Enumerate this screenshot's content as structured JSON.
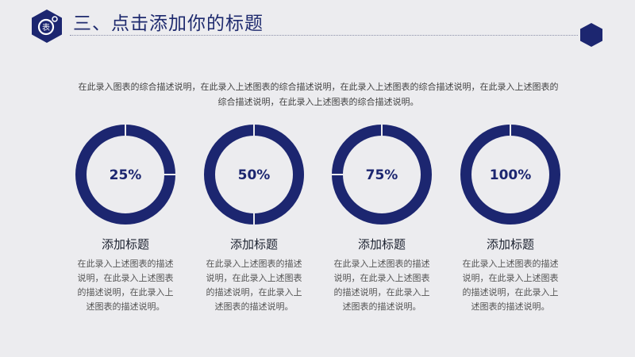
{
  "header": {
    "title": "三、点击添加你的标题",
    "logo_icon": "hexagon-gear-icon",
    "corner_icon": "hexagon-icon"
  },
  "intro": "在此录入图表的综合描述说明，在此录入上述图表的综合描述说明，在此录入上述图表的综合描述说明，在此录入上述图表的综合描述说明，在此录入上述图表的综合描述说明。",
  "colors": {
    "accent": "#1c2670",
    "background": "#ececef"
  },
  "chart_data": {
    "type": "pie",
    "style": "donut",
    "categories": [
      "25%",
      "50%",
      "75%",
      "100%"
    ],
    "values": [
      25,
      50,
      75,
      100
    ]
  },
  "cards": [
    {
      "label": "25%",
      "title": "添加标题",
      "desc": "在此录入上述图表的描述说明，在此录入上述图表的描述说明，在此录入上述图表的描述说明。"
    },
    {
      "label": "50%",
      "title": "添加标题",
      "desc": "在此录入上述图表的描述说明，在此录入上述图表的描述说明，在此录入上述图表的描述说明。"
    },
    {
      "label": "75%",
      "title": "添加标题",
      "desc": "在此录入上述图表的描述说明，在此录入上述图表的描述说明，在此录入上述图表的描述说明。"
    },
    {
      "label": "100%",
      "title": "添加标题",
      "desc": "在此录入上述图表的描述说明，在此录入上述图表的描述说明，在此录入上述图表的描述说明。"
    }
  ]
}
